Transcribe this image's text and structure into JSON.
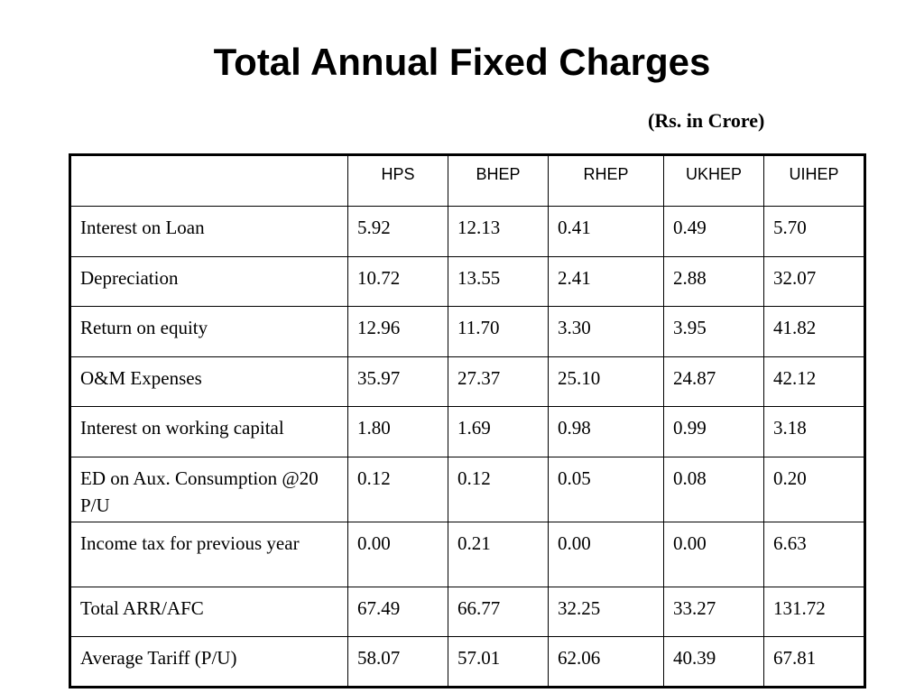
{
  "title": "Total Annual Fixed Charges",
  "unit_note": "(Rs. in Crore)",
  "table": {
    "columns": [
      "",
      "HPS",
      "BHEP",
      "RHEP",
      "UKHEP",
      "UIHEP"
    ],
    "rows": [
      {
        "label": "Interest on Loan",
        "values": [
          "5.92",
          "12.13",
          "0.41",
          "0.49",
          "5.70"
        ]
      },
      {
        "label": "Depreciation",
        "values": [
          "10.72",
          "13.55",
          "2.41",
          "2.88",
          "32.07"
        ]
      },
      {
        "label": "Return on equity",
        "values": [
          "12.96",
          "11.70",
          "3.30",
          "3.95",
          "41.82"
        ]
      },
      {
        "label": "O&M Expenses",
        "values": [
          "35.97",
          "27.37",
          "25.10",
          "24.87",
          "42.12"
        ]
      },
      {
        "label": "Interest on working capital",
        "values": [
          "1.80",
          "1.69",
          "0.98",
          "0.99",
          "3.18"
        ]
      },
      {
        "label": "ED on Aux. Consumption @20 P/U",
        "values": [
          "0.12",
          "0.12",
          "0.05",
          "0.08",
          "0.20"
        ]
      },
      {
        "label": "Income tax for previous year",
        "values": [
          "0.00",
          "0.21",
          "0.00",
          "0.00",
          "6.63"
        ]
      },
      {
        "label": "Total ARR/AFC",
        "values": [
          "67.49",
          "66.77",
          "32.25",
          "33.27",
          "131.72"
        ]
      },
      {
        "label": "Average Tariff (P/U)",
        "values": [
          "58.07",
          "57.01",
          "62.06",
          "40.39",
          "67.81"
        ]
      }
    ]
  }
}
